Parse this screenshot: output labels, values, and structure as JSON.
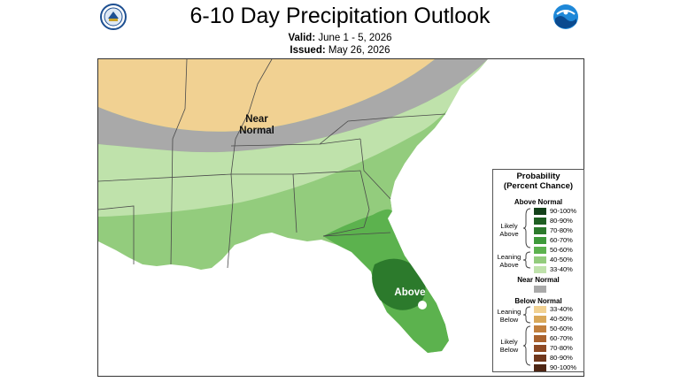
{
  "title": "6-10 Day Precipitation Outlook",
  "valid_label": "Valid:",
  "valid_value": "June 1 - 5, 2026",
  "issued_label": "Issued:",
  "issued_value": "May 26, 2026",
  "map": {
    "near_normal_label": "Near\nNormal",
    "above_label": "Above"
  },
  "legend": {
    "title": "Probability\n(Percent Chance)",
    "above_normal": "Above Normal",
    "likely_above": "Likely\nAbove",
    "leaning_above": "Leaning\nAbove",
    "near_normal": "Near Normal",
    "below_normal": "Below Normal",
    "leaning_below": "Leaning\nBelow",
    "likely_below": "Likely\nBelow",
    "above_items": [
      {
        "label": "90-100%",
        "color": "#14411a"
      },
      {
        "label": "80-90%",
        "color": "#1f5f22"
      },
      {
        "label": "70-80%",
        "color": "#2c7a2c"
      },
      {
        "label": "60-70%",
        "color": "#3e9a3a"
      },
      {
        "label": "50-60%",
        "color": "#5cb24e"
      },
      {
        "label": "40-50%",
        "color": "#93cc7d"
      },
      {
        "label": "33-40%",
        "color": "#bfe2ab"
      }
    ],
    "near_color": "#a9a9a9",
    "below_items": [
      {
        "label": "33-40%",
        "color": "#f1d192"
      },
      {
        "label": "40-50%",
        "color": "#d9a85a"
      },
      {
        "label": "50-60%",
        "color": "#c2803e"
      },
      {
        "label": "60-70%",
        "color": "#a9622e"
      },
      {
        "label": "70-80%",
        "color": "#8e4a24"
      },
      {
        "label": "80-90%",
        "color": "#70371c"
      },
      {
        "label": "90-100%",
        "color": "#4e2614"
      }
    ]
  }
}
